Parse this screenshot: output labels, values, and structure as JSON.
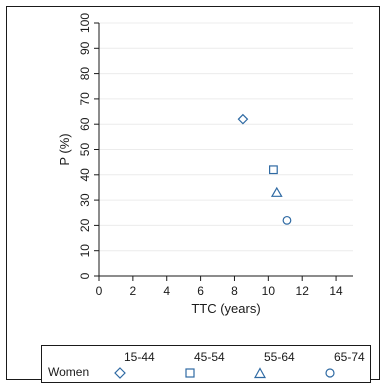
{
  "chart_data": {
    "type": "scatter",
    "xlabel": "TTC (years)",
    "ylabel": "P (%)",
    "xlim": [
      0,
      15
    ],
    "ylim": [
      0,
      100
    ],
    "xticks": [
      0,
      2,
      4,
      6,
      8,
      10,
      12,
      14
    ],
    "yticks": [
      0,
      10,
      20,
      30,
      40,
      50,
      60,
      70,
      80,
      90,
      100
    ],
    "grid": "horizontal",
    "legend_position": "bottom",
    "legend_row_label": "Women",
    "marker_color": "#2f6aa3",
    "series": [
      {
        "name": "15-44",
        "marker": "diamond",
        "points": [
          {
            "x": 8.5,
            "y": 62
          }
        ]
      },
      {
        "name": "45-54",
        "marker": "square",
        "points": [
          {
            "x": 10.3,
            "y": 42
          }
        ]
      },
      {
        "name": "55-64",
        "marker": "triangle",
        "points": [
          {
            "x": 10.5,
            "y": 33
          }
        ]
      },
      {
        "name": "65-74",
        "marker": "circle",
        "points": [
          {
            "x": 11.1,
            "y": 22
          }
        ]
      }
    ]
  }
}
